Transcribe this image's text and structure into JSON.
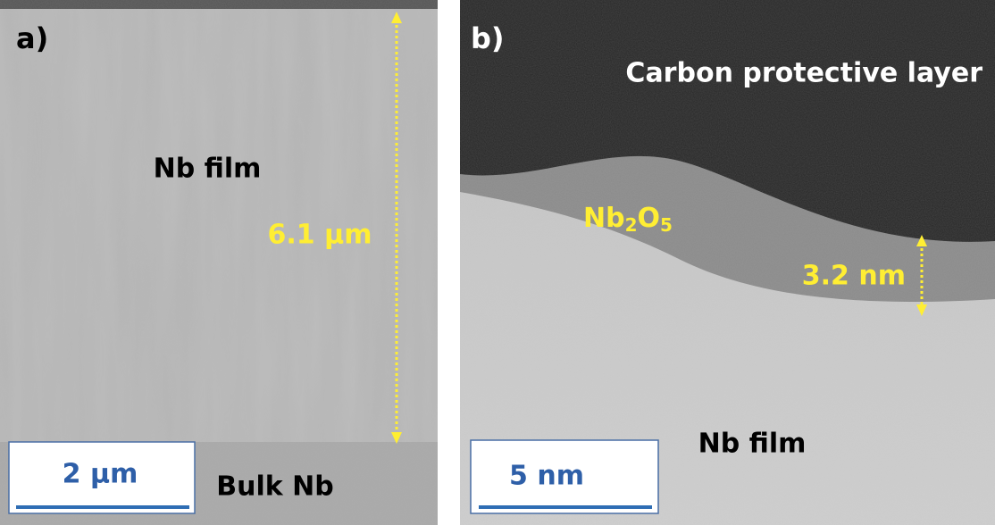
{
  "panel_a": {
    "label": "a)",
    "region_label": "Nb film",
    "thickness": "6.1 μm",
    "scale_bar": "2 μm",
    "bottom_label": "Bulk Nb"
  },
  "panel_b": {
    "label": "b)",
    "top_label": "Carbon protective layer",
    "oxide_label": [
      "Nb",
      "2",
      "O",
      "5"
    ],
    "thickness": "3.2 nm",
    "scale_bar": "5 nm",
    "bottom_label": "Nb film"
  }
}
